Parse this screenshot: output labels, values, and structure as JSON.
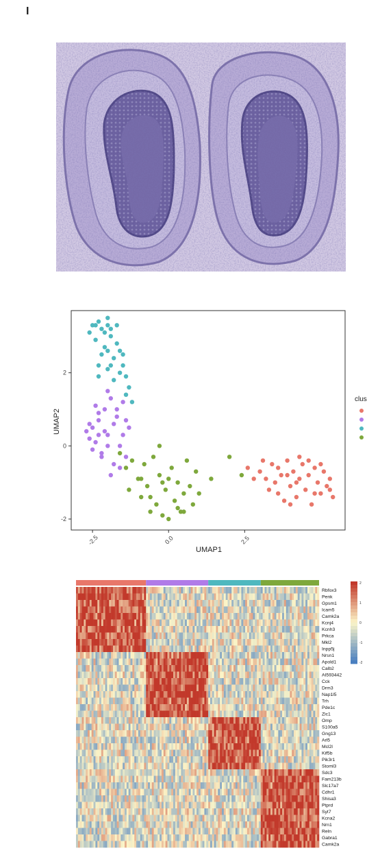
{
  "figure": {
    "panel_label": "I"
  },
  "umap": {
    "xlabel": "UMAP1",
    "ylabel": "UMAP2",
    "legend_title": "clus",
    "colors": [
      "#e8776a",
      "#b07be8",
      "#4fb8bf",
      "#7ea83c"
    ]
  },
  "chart_data": [
    {
      "type": "scatter",
      "title": "",
      "xlabel": "UMAP1",
      "ylabel": "UMAP2",
      "xlim": [
        -3.2,
        5.8
      ],
      "ylim": [
        -2.3,
        3.7
      ],
      "x_ticks": [
        -2.5,
        0.0,
        2.5
      ],
      "x_tick_labels": [
        "-2.5",
        "0.0",
        "2.5"
      ],
      "y_ticks": [
        2,
        0,
        -2
      ],
      "y_tick_labels": [
        "2",
        "0",
        "-2"
      ],
      "legend_title": "clus",
      "legend_position": "right",
      "grid": false,
      "series": [
        {
          "color": "#e8776a",
          "points": [
            [
              2.6,
              -0.6
            ],
            [
              3.0,
              -0.7
            ],
            [
              3.2,
              -0.9
            ],
            [
              3.4,
              -0.5
            ],
            [
              3.5,
              -1.0
            ],
            [
              3.6,
              -1.3
            ],
            [
              3.7,
              -0.8
            ],
            [
              3.8,
              -1.5
            ],
            [
              3.9,
              -0.4
            ],
            [
              4.0,
              -1.1
            ],
            [
              4.1,
              -0.7
            ],
            [
              4.2,
              -1.4
            ],
            [
              4.3,
              -0.9
            ],
            [
              4.4,
              -0.5
            ],
            [
              4.5,
              -1.2
            ],
            [
              4.6,
              -0.8
            ],
            [
              4.7,
              -1.6
            ],
            [
              4.8,
              -0.6
            ],
            [
              4.9,
              -1.0
            ],
            [
              5.0,
              -1.3
            ],
            [
              5.1,
              -0.7
            ],
            [
              5.2,
              -1.1
            ],
            [
              5.3,
              -0.9
            ],
            [
              5.4,
              -1.4
            ],
            [
              4.3,
              -0.3
            ],
            [
              3.3,
              -1.2
            ],
            [
              4.0,
              -1.6
            ],
            [
              4.6,
              -0.4
            ],
            [
              5.0,
              -0.5
            ],
            [
              5.3,
              -1.2
            ],
            [
              3.1,
              -0.4
            ],
            [
              3.6,
              -0.6
            ],
            [
              4.8,
              -1.3
            ],
            [
              4.2,
              -1.0
            ],
            [
              3.9,
              -0.8
            ],
            [
              2.8,
              -0.9
            ]
          ]
        },
        {
          "color": "#b07be8",
          "points": [
            [
              -2.7,
              0.4
            ],
            [
              -2.6,
              0.2
            ],
            [
              -2.5,
              0.5
            ],
            [
              -2.4,
              0.1
            ],
            [
              -2.3,
              0.7
            ],
            [
              -2.2,
              -0.2
            ],
            [
              -2.1,
              1.0
            ],
            [
              -2.0,
              0.3
            ],
            [
              -1.9,
              1.3
            ],
            [
              -1.8,
              -0.5
            ],
            [
              -1.7,
              0.8
            ],
            [
              -1.6,
              0.0
            ],
            [
              -1.5,
              1.2
            ],
            [
              -1.4,
              -0.3
            ],
            [
              -1.3,
              0.5
            ],
            [
              -2.4,
              1.1
            ],
            [
              -2.3,
              0.9
            ],
            [
              -2.0,
              1.5
            ],
            [
              -1.7,
              1.0
            ],
            [
              -1.9,
              -0.8
            ],
            [
              -2.2,
              -0.3
            ],
            [
              -1.6,
              -0.6
            ],
            [
              -2.0,
              0.0
            ],
            [
              -2.5,
              -0.1
            ],
            [
              -1.8,
              0.6
            ],
            [
              -2.1,
              0.4
            ],
            [
              -1.5,
              0.3
            ],
            [
              -1.4,
              0.7
            ],
            [
              -2.6,
              0.6
            ],
            [
              -2.3,
              0.3
            ]
          ]
        },
        {
          "color": "#4fb8bf",
          "points": [
            [
              -2.6,
              3.1
            ],
            [
              -2.5,
              3.3
            ],
            [
              -2.4,
              2.9
            ],
            [
              -2.3,
              3.4
            ],
            [
              -2.2,
              3.2
            ],
            [
              -2.1,
              2.7
            ],
            [
              -2.0,
              3.5
            ],
            [
              -1.9,
              3.0
            ],
            [
              -1.8,
              2.4
            ],
            [
              -1.7,
              3.3
            ],
            [
              -1.6,
              2.6
            ],
            [
              -1.5,
              2.2
            ],
            [
              -1.4,
              1.9
            ],
            [
              -1.3,
              1.6
            ],
            [
              -1.2,
              1.2
            ],
            [
              -2.3,
              2.2
            ],
            [
              -2.0,
              2.1
            ],
            [
              -1.8,
              1.8
            ],
            [
              -1.6,
              2.0
            ],
            [
              -2.1,
              3.1
            ],
            [
              -1.9,
              3.2
            ],
            [
              -2.2,
              2.5
            ],
            [
              -1.7,
              2.8
            ],
            [
              -2.4,
              3.3
            ],
            [
              -2.0,
              2.6
            ],
            [
              -1.4,
              1.4
            ],
            [
              -1.9,
              2.2
            ],
            [
              -2.3,
              1.9
            ],
            [
              -2.0,
              3.3
            ],
            [
              -1.5,
              2.5
            ]
          ]
        },
        {
          "color": "#7ea83c",
          "points": [
            [
              -1.6,
              -0.2
            ],
            [
              -1.4,
              -0.6
            ],
            [
              -1.3,
              -1.2
            ],
            [
              -1.2,
              -0.4
            ],
            [
              -1.0,
              -0.9
            ],
            [
              -0.9,
              -1.4
            ],
            [
              -0.8,
              -0.5
            ],
            [
              -0.7,
              -1.1
            ],
            [
              -0.6,
              -1.8
            ],
            [
              -0.5,
              -0.3
            ],
            [
              -0.4,
              -1.6
            ],
            [
              -0.3,
              -0.8
            ],
            [
              -0.2,
              -1.9
            ],
            [
              -0.1,
              -1.2
            ],
            [
              0.0,
              -2.0
            ],
            [
              0.1,
              -0.6
            ],
            [
              0.2,
              -1.5
            ],
            [
              0.3,
              -1.0
            ],
            [
              0.4,
              -1.8
            ],
            [
              0.5,
              -1.3
            ],
            [
              0.6,
              -0.4
            ],
            [
              0.7,
              -1.1
            ],
            [
              0.8,
              -1.6
            ],
            [
              0.9,
              -0.7
            ],
            [
              1.0,
              -1.3
            ],
            [
              1.4,
              -0.9
            ],
            [
              2.0,
              -0.3
            ],
            [
              -0.6,
              -1.4
            ],
            [
              -0.2,
              -1.0
            ],
            [
              0.3,
              -1.7
            ],
            [
              -0.3,
              0.0
            ],
            [
              0.0,
              -0.9
            ],
            [
              -0.9,
              -0.9
            ],
            [
              0.5,
              -1.8
            ],
            [
              2.4,
              -0.8
            ]
          ]
        }
      ]
    },
    {
      "type": "heatmap",
      "title": "",
      "rows": [
        "Rbfox3",
        "Penk",
        "Gpsm1",
        "Icam5",
        "Camk2a",
        "Kcnj4",
        "Kcnh3",
        "Prkca",
        "Mkl2",
        "Inpp5j",
        "Nrsn1",
        "Apold1",
        "Calb2",
        "AI593442",
        "Cck",
        "Drm3",
        "Nap1l5",
        "Trh",
        "Pde1c",
        "Zic1",
        "Omp",
        "S100a5",
        "Gng13",
        "Arl5",
        "Mcl2l",
        "Kif5b",
        "Pik3r1",
        "Stoml3",
        "Sdc3",
        "Fam213b",
        "Slc17a7",
        "Cdhr1",
        "Shisa3",
        "Ptprd",
        "Syt7",
        "Kcna2",
        "Nrn1",
        "Reln",
        "Gabra1",
        "Camk2a"
      ],
      "column_group_colors": [
        "#e8776a",
        "#b07be8",
        "#4fb8bf",
        "#7ea83c"
      ],
      "column_group_sizes": [
        36,
        32,
        27,
        30
      ],
      "row_blocks": [
        [
          0,
          10
        ],
        [
          10,
          20
        ],
        [
          20,
          28
        ],
        [
          28,
          40
        ]
      ],
      "color_scale": [
        "#4a7fc0",
        "#fcf5c8",
        "#c2392b"
      ],
      "legend_ticks": [
        "2",
        "1",
        "0",
        "-1",
        "-2"
      ]
    }
  ]
}
